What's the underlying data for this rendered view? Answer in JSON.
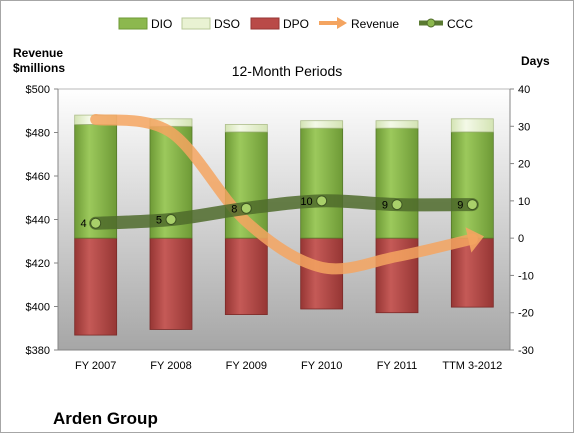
{
  "chart_data": {
    "type": "bar",
    "title": "12-Month Periods",
    "company": "Arden Group",
    "left_axis_label_line1": "Revenue",
    "left_axis_label_line2": "$millions",
    "right_axis_label": "Days",
    "categories": [
      "FY 2007",
      "FY 2008",
      "FY 2009",
      "FY 2010",
      "FY 2011",
      "TTM 3-2012"
    ],
    "left_axis": {
      "min": 380,
      "max": 500,
      "step": 20,
      "tick_labels": [
        "$380",
        "$400",
        "$420",
        "$440",
        "$460",
        "$480",
        "$500"
      ]
    },
    "right_axis": {
      "min": -30,
      "max": 40,
      "step": 10,
      "tick_labels": [
        "-30",
        "-20",
        "-10",
        "0",
        "10",
        "20",
        "30",
        "40"
      ]
    },
    "grid": false,
    "legend_position": "top",
    "series": [
      {
        "name": "DIO",
        "kind": "stacked-bar",
        "axis": "right",
        "color": "#8cb84e",
        "values": [
          30.5,
          30,
          28.5,
          29.5,
          29.5,
          28.5
        ]
      },
      {
        "name": "DSO",
        "kind": "stacked-bar",
        "axis": "right",
        "color": "#e9f2d3",
        "values": [
          2.5,
          2,
          2,
          2,
          2,
          3.5
        ]
      },
      {
        "name": "DPO",
        "kind": "negative-bar",
        "axis": "right",
        "color": "#b94a48",
        "values": [
          -26,
          -24.5,
          -20.5,
          -19,
          -20,
          -18.5
        ]
      },
      {
        "name": "Revenue",
        "kind": "arrow-line",
        "axis": "left",
        "color": "#f4a460",
        "values": [
          486,
          480,
          439,
          418,
          423,
          431
        ]
      },
      {
        "name": "CCC",
        "kind": "line",
        "axis": "right",
        "color": "#5a7a32",
        "values": [
          4,
          5,
          8,
          10,
          9,
          9
        ],
        "labels": [
          "4",
          "5",
          "8",
          "10",
          "9",
          "9"
        ]
      }
    ]
  }
}
